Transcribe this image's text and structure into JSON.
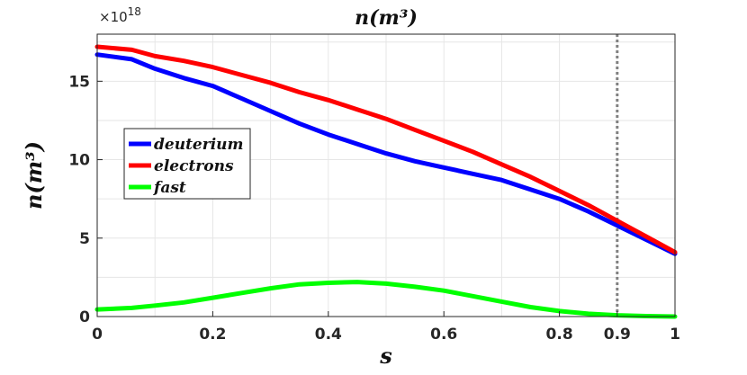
{
  "chart_data": {
    "type": "line",
    "title": "n(m³)",
    "xlabel": "s",
    "ylabel": "n(m³)",
    "y_exponent_label": "×10",
    "y_exponent_power": "18",
    "xlim": [
      0,
      1
    ],
    "ylim": [
      0,
      1.8e+19
    ],
    "x_ticks": [
      "0",
      "0.2",
      "0.4",
      "0.6",
      "0.8",
      "0.9",
      "1"
    ],
    "x_tick_values": [
      0,
      0.2,
      0.4,
      0.6,
      0.8,
      0.9,
      1
    ],
    "y_ticks": [
      "0",
      "5",
      "10",
      "15"
    ],
    "y_tick_values": [
      0,
      5e+18,
      1e+19,
      1.5e+19
    ],
    "grid": true,
    "legend_position": "center-left",
    "vertical_marker": {
      "x": 0.9,
      "style": "dotted",
      "color": "#808080"
    },
    "series": [
      {
        "name": "deuterium",
        "color": "#0000ff",
        "x": [
          0,
          0.06,
          0.1,
          0.15,
          0.2,
          0.25,
          0.3,
          0.35,
          0.4,
          0.45,
          0.5,
          0.55,
          0.6,
          0.65,
          0.7,
          0.75,
          0.8,
          0.85,
          0.9,
          0.95,
          1.0
        ],
        "y": [
          1.67e+19,
          1.64e+19,
          1.58e+19,
          1.52e+19,
          1.47e+19,
          1.39e+19,
          1.31e+19,
          1.23e+19,
          1.16e+19,
          1.1e+19,
          1.04e+19,
          9.9e+18,
          9.5e+18,
          9.1e+18,
          8.7e+18,
          8.1e+18,
          7.5e+18,
          6.7e+18,
          5.8e+18,
          4.9e+18,
          4e+18
        ]
      },
      {
        "name": "electrons",
        "color": "#ff0000",
        "x": [
          0,
          0.06,
          0.1,
          0.15,
          0.2,
          0.25,
          0.3,
          0.35,
          0.4,
          0.45,
          0.5,
          0.55,
          0.6,
          0.65,
          0.7,
          0.75,
          0.8,
          0.85,
          0.9,
          0.95,
          1.0
        ],
        "y": [
          1.72e+19,
          1.7e+19,
          1.66e+19,
          1.63e+19,
          1.59e+19,
          1.54e+19,
          1.49e+19,
          1.43e+19,
          1.38e+19,
          1.32e+19,
          1.26e+19,
          1.19e+19,
          1.12e+19,
          1.05e+19,
          9.7e+18,
          8.9e+18,
          8e+18,
          7.1e+18,
          6.1e+18,
          5.1e+18,
          4.1e+18
        ]
      },
      {
        "name": "fast",
        "color": "#00ff00",
        "x": [
          0,
          0.06,
          0.1,
          0.15,
          0.2,
          0.25,
          0.3,
          0.35,
          0.4,
          0.45,
          0.5,
          0.55,
          0.6,
          0.65,
          0.7,
          0.75,
          0.8,
          0.85,
          0.9,
          0.95,
          1.0
        ],
        "y": [
          4.5e+17,
          5.5e+17,
          7e+17,
          9e+17,
          1.2e+18,
          1.5e+18,
          1.8e+18,
          2.05e+18,
          2.15e+18,
          2.2e+18,
          2.1e+18,
          1.9e+18,
          1.65e+18,
          1.3e+18,
          9.5e+17,
          6e+17,
          3.5e+17,
          1.8e+17,
          8e+16,
          3e+16,
          0.0
        ]
      }
    ]
  }
}
